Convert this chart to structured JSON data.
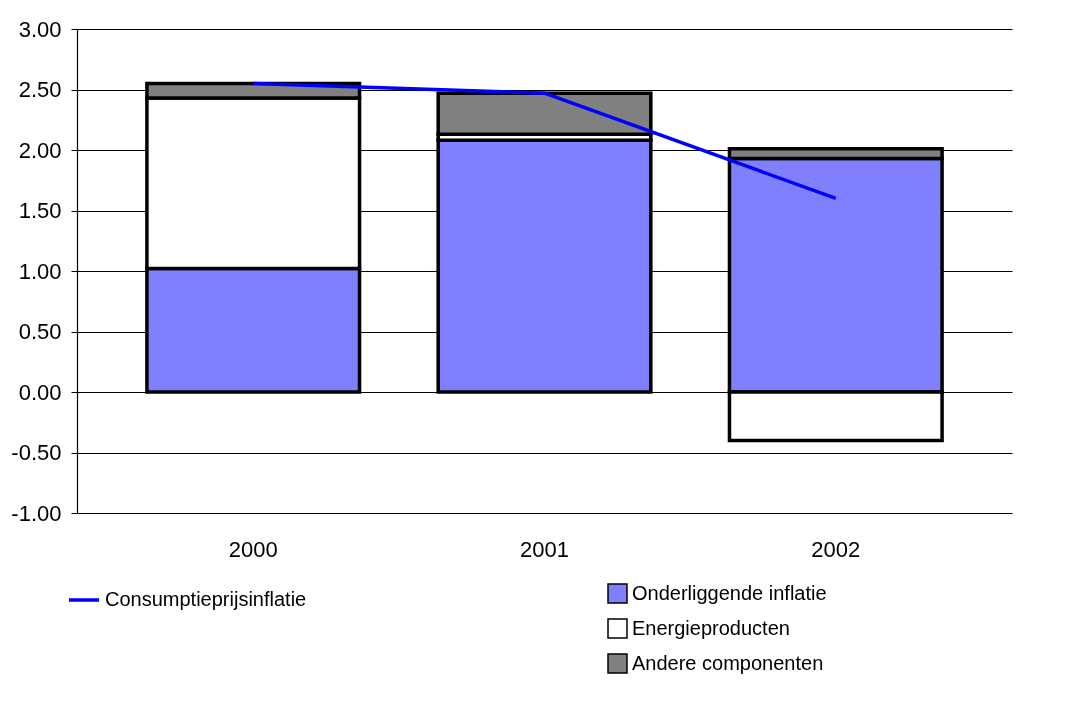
{
  "chart_data": {
    "type": "bar",
    "stacked": true,
    "categories": [
      "2000",
      "2001",
      "2002"
    ],
    "series": [
      {
        "name": "Onderliggende inflatie",
        "color": "#8080ff",
        "values": [
          1.02,
          2.08,
          1.93
        ]
      },
      {
        "name": "Energieproducten",
        "color": "#ffffff",
        "values": [
          1.41,
          0.05,
          -0.4
        ]
      },
      {
        "name": "Andere componenten",
        "color": "#808080",
        "values": [
          0.12,
          0.34,
          0.08
        ]
      },
      {
        "name": "Consumptieprijsinflatie",
        "type": "line",
        "color": "#0000ff",
        "values": [
          2.55,
          2.47,
          1.6
        ]
      }
    ],
    "ylim": [
      -1,
      3
    ],
    "yticks": [
      {
        "value": -1,
        "label": "-1.00"
      },
      {
        "value": -0.5,
        "label": "-0.50"
      },
      {
        "value": 0,
        "label": "0.00"
      },
      {
        "value": 0.5,
        "label": "0.50"
      },
      {
        "value": 1,
        "label": "1.00"
      },
      {
        "value": 1.5,
        "label": "1.50"
      },
      {
        "value": 2,
        "label": "2.00"
      },
      {
        "value": 2.5,
        "label": "2.50"
      },
      {
        "value": 3,
        "label": "3.00"
      }
    ],
    "grid": "y",
    "legend": "bottom"
  }
}
